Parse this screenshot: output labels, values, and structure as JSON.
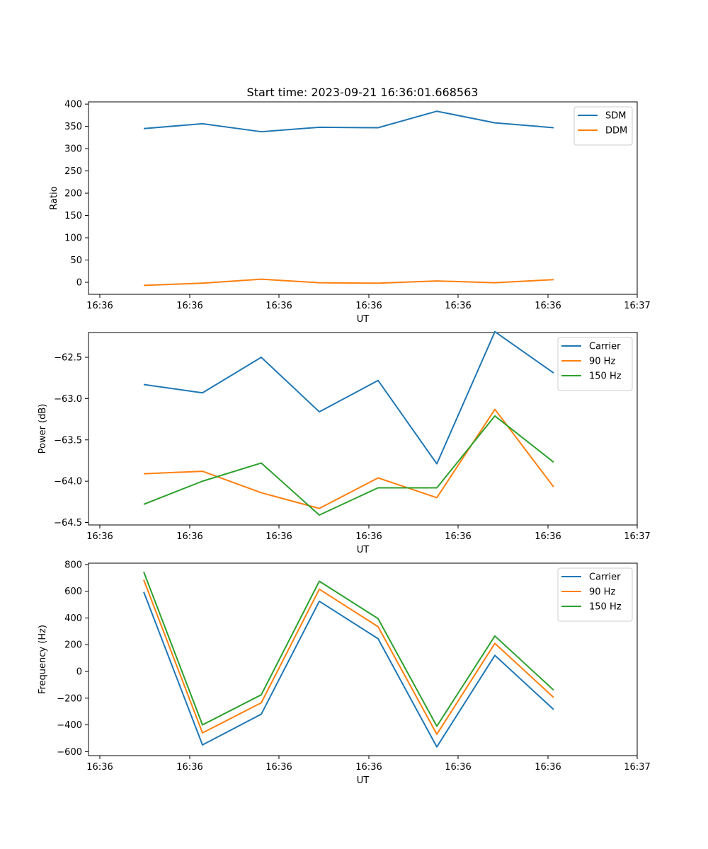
{
  "title": "Start time: 2023-09-21 16:36:01.668563",
  "chart_data": [
    {
      "type": "line",
      "xlabel": "UT",
      "ylabel": "Ratio",
      "xticks": [
        "16:36",
        "16:36",
        "16:36",
        "16:36",
        "16:36",
        "16:36",
        "16:37"
      ],
      "yticks": [
        "0",
        "50",
        "100",
        "150",
        "200",
        "250",
        "300",
        "350",
        "400"
      ],
      "ylim": [
        -27,
        405
      ],
      "xlim": [
        -0.5,
        6.5
      ],
      "ytick_values": [
        0,
        50,
        100,
        150,
        200,
        250,
        300,
        350,
        400
      ],
      "x": [
        0,
        1,
        2,
        3,
        4,
        5,
        6,
        7
      ],
      "legend_position": "top-right",
      "series": [
        {
          "name": "SDM",
          "color": "#1f77b4",
          "values": [
            345,
            356,
            338,
            348,
            347,
            384,
            358,
            347
          ]
        },
        {
          "name": "DDM",
          "color": "#ff7f0e",
          "values": [
            -7,
            -2,
            7,
            -1,
            -2,
            3,
            -1,
            6
          ]
        }
      ]
    },
    {
      "type": "line",
      "xlabel": "UT",
      "ylabel": "Power (dB)",
      "xticks": [
        "16:36",
        "16:36",
        "16:36",
        "16:36",
        "16:36",
        "16:36",
        "16:37"
      ],
      "yticks": [
        "−64.5",
        "−64.0",
        "−63.5",
        "−63.0",
        "−62.5"
      ],
      "ylim": [
        -64.53,
        -62.2
      ],
      "xlim": [
        -0.5,
        6.5
      ],
      "ytick_values": [
        -64.5,
        -64.0,
        -63.5,
        -63.0,
        -62.5
      ],
      "x": [
        0,
        1,
        2,
        3,
        4,
        5,
        6,
        7
      ],
      "legend_position": "top-right",
      "series": [
        {
          "name": "Carrier",
          "color": "#1f77b4",
          "values": [
            -62.83,
            -62.93,
            -62.5,
            -63.16,
            -62.78,
            -63.79,
            -62.19,
            -62.69
          ]
        },
        {
          "name": "90 Hz",
          "color": "#ff7f0e",
          "values": [
            -63.91,
            -63.88,
            -64.14,
            -64.33,
            -63.96,
            -64.2,
            -63.13,
            -64.07
          ]
        },
        {
          "name": "150 Hz",
          "color": "#2ca02c",
          "values": [
            -64.28,
            -64.0,
            -63.78,
            -64.41,
            -64.08,
            -64.08,
            -63.21,
            -63.77
          ]
        }
      ]
    },
    {
      "type": "line",
      "xlabel": "UT",
      "ylabel": "Frequency (Hz)",
      "xticks": [
        "16:36",
        "16:36",
        "16:36",
        "16:36",
        "16:36",
        "16:36",
        "16:37"
      ],
      "yticks": [
        "−600",
        "−400",
        "−200",
        "0",
        "200",
        "400",
        "600",
        "800"
      ],
      "ylim": [
        -630,
        810
      ],
      "xlim": [
        -0.5,
        6.5
      ],
      "ytick_values": [
        -600,
        -400,
        -200,
        0,
        200,
        400,
        600,
        800
      ],
      "x": [
        0,
        1,
        2,
        3,
        4,
        5,
        6,
        7
      ],
      "legend_position": "top-right",
      "series": [
        {
          "name": "Carrier",
          "color": "#1f77b4",
          "values": [
            595,
            -550,
            -320,
            525,
            245,
            -565,
            120,
            -285
          ]
        },
        {
          "name": "90 Hz",
          "color": "#ff7f0e",
          "values": [
            685,
            -460,
            -235,
            615,
            335,
            -470,
            210,
            -195
          ]
        },
        {
          "name": "150 Hz",
          "color": "#2ca02c",
          "values": [
            745,
            -400,
            -175,
            675,
            395,
            -410,
            265,
            -140
          ]
        }
      ]
    }
  ]
}
